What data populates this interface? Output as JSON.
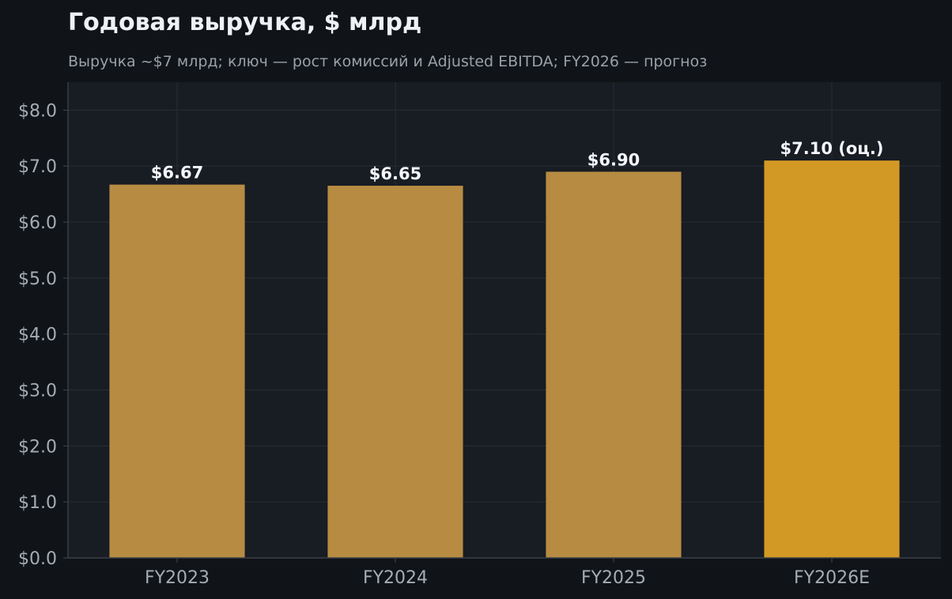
{
  "chart_data": {
    "type": "bar",
    "title": "Годовая выручка, $ млрд",
    "subtitle": "Выручка ~$7 млрд; ключ — рост комиссий и Adjusted EBITDA; FY2026 — прогноз",
    "xlabel": "",
    "ylabel": "",
    "categories": [
      "FY2023",
      "FY2024",
      "FY2025",
      "FY2026E"
    ],
    "values": [
      6.67,
      6.65,
      6.9,
      7.1
    ],
    "data_labels": [
      "$6.67",
      "$6.65",
      "$6.90",
      "$7.10 (оц.)"
    ],
    "ylim": [
      0,
      8.5
    ],
    "yticks": [
      0,
      1,
      2,
      3,
      4,
      5,
      6,
      7,
      8
    ],
    "ytick_labels": [
      "$0.0",
      "$1.0",
      "$2.0",
      "$3.0",
      "$4.0",
      "$5.0",
      "$6.0",
      "$7.0",
      "$8.0"
    ],
    "grid": true,
    "legend": "none",
    "colors": {
      "page_background": "#101418",
      "plot_background": "#181c23",
      "grid": "#262b33",
      "axis": "#3a3f47",
      "title": "#eef1f5",
      "subtitle": "#9aa0a8",
      "tick_text": "#a6acb4",
      "data_label": "#f4f6fa",
      "bar_actual": "#b78b42",
      "bar_forecast": "#d29a24"
    },
    "bar_colors": [
      "#b78b42",
      "#b78b42",
      "#b78b42",
      "#d29a24"
    ]
  }
}
